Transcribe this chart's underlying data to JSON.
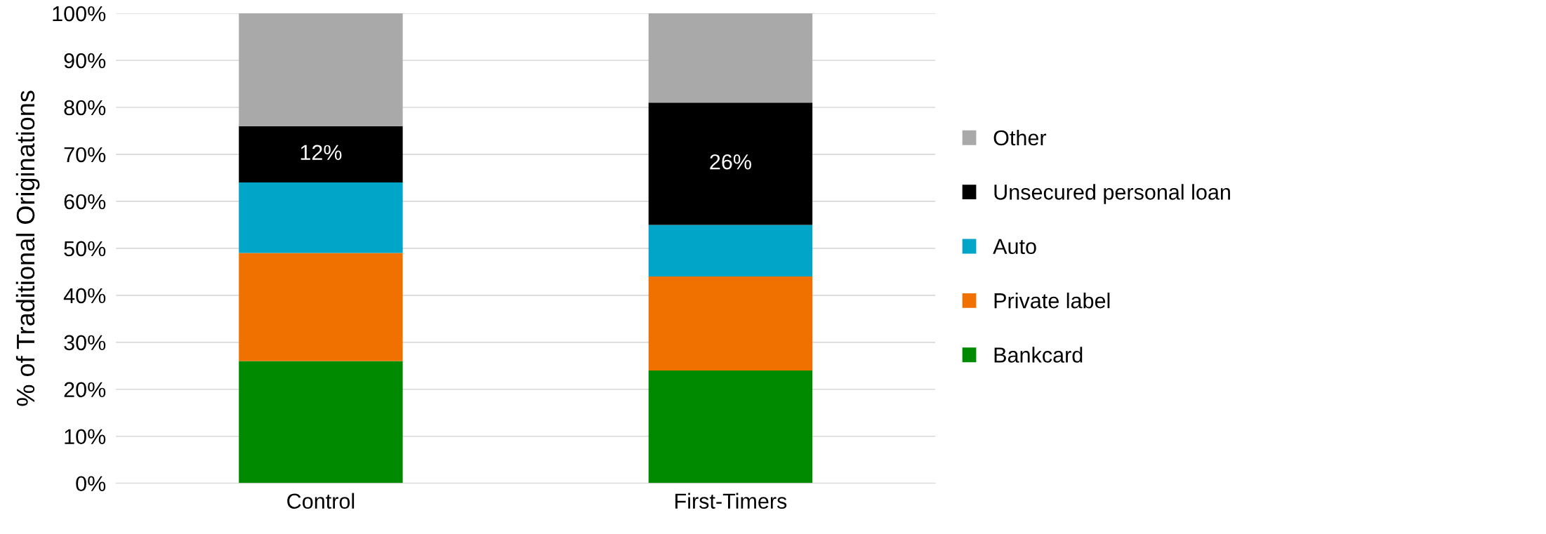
{
  "chart_data": {
    "type": "bar",
    "stacked": true,
    "ylabel": "% of Traditional Originations",
    "categories": [
      "Control",
      "First-Timers"
    ],
    "series": [
      {
        "name": "Bankcard",
        "color": "#008a00",
        "values": [
          26,
          24
        ]
      },
      {
        "name": "Private label",
        "color": "#f07000",
        "values": [
          23,
          20
        ]
      },
      {
        "name": "Auto",
        "color": "#00a5c8",
        "values": [
          15,
          11
        ]
      },
      {
        "name": "Unsecured personal loan",
        "color": "#000000",
        "values": [
          12,
          26
        ],
        "value_labels": [
          "12%",
          "26%"
        ]
      },
      {
        "name": "Other",
        "color": "#a9a9a9",
        "values": [
          24,
          19
        ]
      }
    ],
    "ylim": [
      0,
      100
    ],
    "yticks": [
      {
        "value": 0,
        "label": "0%"
      },
      {
        "value": 10,
        "label": "10%"
      },
      {
        "value": 20,
        "label": "20%"
      },
      {
        "value": 30,
        "label": "30%"
      },
      {
        "value": 40,
        "label": "40%"
      },
      {
        "value": 50,
        "label": "50%"
      },
      {
        "value": 60,
        "label": "60%"
      },
      {
        "value": 70,
        "label": "70%"
      },
      {
        "value": 80,
        "label": "80%"
      },
      {
        "value": 90,
        "label": "90%"
      },
      {
        "value": 100,
        "label": "100%"
      }
    ],
    "grid": "y",
    "legend": "right"
  }
}
